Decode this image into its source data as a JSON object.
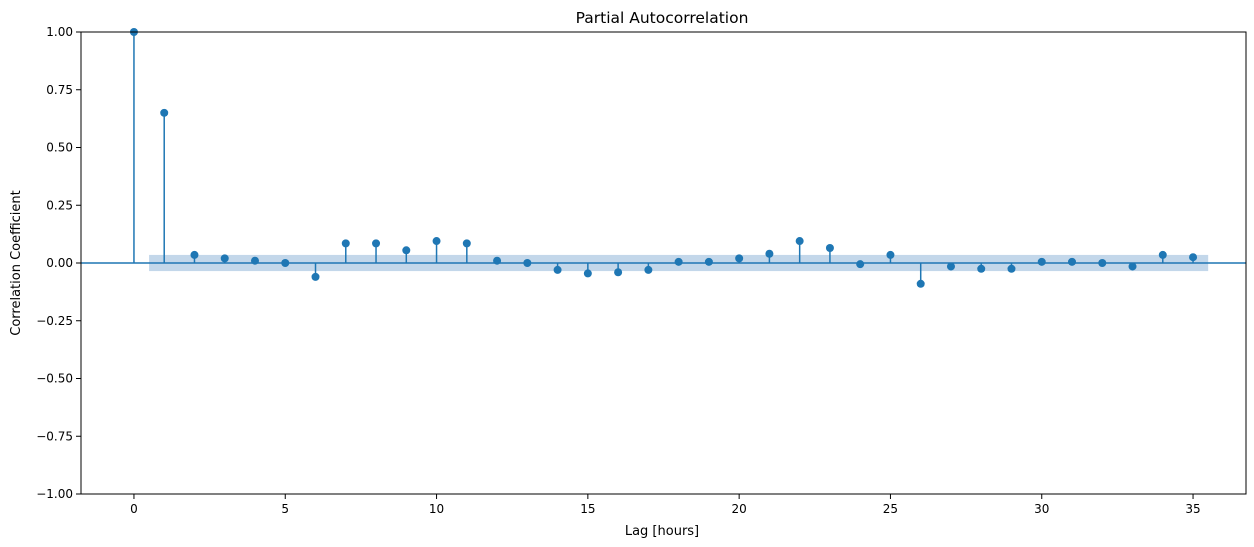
{
  "chart_data": {
    "type": "scatter",
    "title": "Partial Autocorrelation",
    "xlabel": "Lag [hours]",
    "ylabel": "Correlation Coefficient",
    "xlim": [
      -1.75,
      36.75
    ],
    "ylim": [
      -1.0,
      1.0
    ],
    "xticks": [
      0,
      5,
      10,
      15,
      20,
      25,
      30,
      35
    ],
    "xtick_labels": [
      "0",
      "5",
      "10",
      "15",
      "20",
      "25",
      "30",
      "35"
    ],
    "yticks": [
      1.0,
      0.75,
      0.5,
      0.25,
      0.0,
      -0.25,
      -0.5,
      -0.75,
      -1.0
    ],
    "ytick_labels": [
      "1.00",
      "0.75",
      "0.50",
      "0.25",
      "0.00",
      "−0.25",
      "−0.50",
      "−0.75",
      "−1.00"
    ],
    "grid": false,
    "lags": [
      0,
      1,
      2,
      3,
      4,
      5,
      6,
      7,
      8,
      9,
      10,
      11,
      12,
      13,
      14,
      15,
      16,
      17,
      18,
      19,
      20,
      21,
      22,
      23,
      24,
      25,
      26,
      27,
      28,
      29,
      30,
      31,
      32,
      33,
      34,
      35
    ],
    "values": [
      1.0,
      0.65,
      0.035,
      0.02,
      0.01,
      0.0,
      -0.06,
      0.085,
      0.085,
      0.055,
      0.095,
      0.085,
      0.01,
      0.0,
      -0.03,
      -0.045,
      -0.04,
      -0.03,
      0.005,
      0.005,
      0.02,
      0.04,
      0.095,
      0.065,
      -0.005,
      0.035,
      -0.09,
      -0.015,
      -0.025,
      -0.025,
      0.005,
      0.005,
      0.0,
      -0.015,
      0.035,
      0.025
    ],
    "confidence_band": {
      "x_start": 0.5,
      "x_end": 35.5,
      "lower": -0.035,
      "upper": 0.035
    },
    "colors": {
      "marker": "#1f77b4",
      "band": "#c3d7ea",
      "axis": "#000000"
    }
  }
}
